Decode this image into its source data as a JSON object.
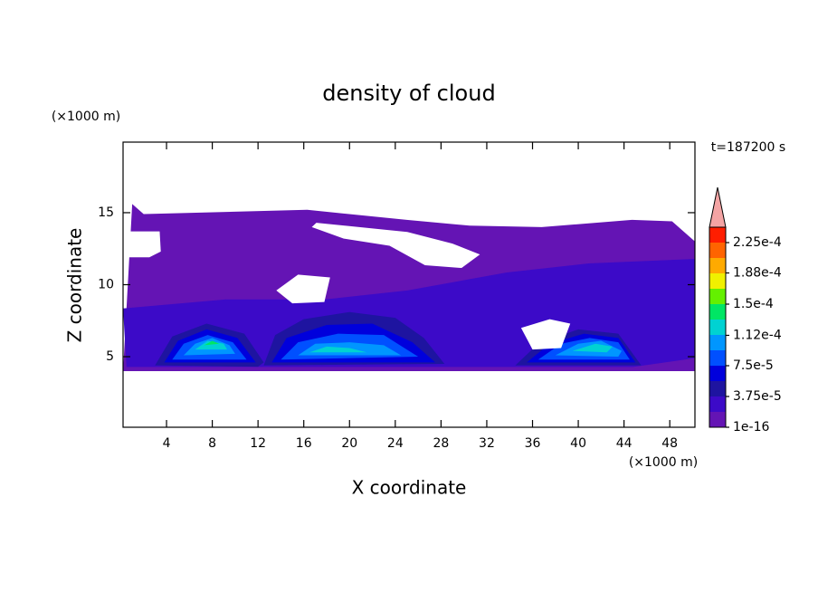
{
  "chart_data": {
    "type": "contour",
    "title": "density of cloud",
    "x_label": "X coordinate",
    "y_label": "Z coordinate",
    "x_unit": "(×1000 m)",
    "y_unit": "(×1000 m)",
    "annotation": "t=187200 s",
    "xlim": [
      0.2,
      50.2
    ],
    "ylim": [
      0.1,
      19.9
    ],
    "xticks": [
      4,
      8,
      12,
      16,
      20,
      24,
      28,
      32,
      36,
      40,
      44,
      48
    ],
    "yticks": [
      5,
      10,
      15
    ],
    "colorbar": {
      "levels": [
        1e-16,
        1.875e-05,
        3.75e-05,
        5.625e-05,
        7.5e-05,
        9.375e-05,
        0.0001125,
        0.00013125,
        0.00015,
        0.00016875,
        0.0001875,
        0.00020625,
        0.000225,
        0.00024375
      ],
      "colors": [
        "#6414b4",
        "#3c0ac8",
        "#1e14a0",
        "#0000dc",
        "#0050ff",
        "#0096ff",
        "#00d2d2",
        "#00e664",
        "#64f000",
        "#f0f000",
        "#ffaa00",
        "#ff6400",
        "#ff1e00"
      ],
      "extend_color": "#f4a4a4",
      "ticks": [
        1e-16,
        {
          "value": 3.75e-05,
          "label": "3.75e-5"
        },
        {
          "value": 7.5e-05,
          "label": "7.5e-5"
        },
        {
          "value": 0.000112,
          "label": "1.12e-4"
        },
        {
          "value": 0.00015,
          "label": "1.5e-4"
        },
        {
          "value": 0.000188,
          "label": "1.88e-4"
        },
        {
          "value": 0.000225,
          "label": "2.25e-4"
        }
      ]
    },
    "regions": [
      {
        "level": 0,
        "x": [
          0.2,
          1.0,
          2.0,
          16.3,
          25.0,
          30.5,
          36.8,
          44.7,
          48.2,
          50.2,
          50.2,
          0.2
        ],
        "y": [
          4.0,
          15.6,
          14.9,
          15.2,
          14.5,
          14.1,
          14.0,
          14.5,
          14.4,
          13.0,
          4.0,
          4.0
        ]
      },
      {
        "level": 1,
        "x": [
          0.2,
          9.2,
          17.9,
          25.05,
          33.75,
          40.9,
          50.2,
          50.2,
          44.8,
          0.5
        ],
        "y": [
          8.35,
          8.98,
          8.98,
          9.6,
          10.85,
          11.475,
          11.79,
          4.9,
          4.29,
          4.29
        ]
      },
      {
        "level": 2,
        "x": [
          3.0,
          4.5,
          7.5,
          10.8,
          12.5,
          12.0
        ],
        "y": [
          4.4,
          6.4,
          7.3,
          6.6,
          4.6,
          4.3
        ]
      },
      {
        "level": 3,
        "x": [
          3.8,
          5.0,
          7.5,
          10.2,
          11.8
        ],
        "y": [
          4.6,
          6.1,
          6.9,
          6.3,
          4.6
        ]
      },
      {
        "level": 4,
        "x": [
          4.5,
          5.5,
          7.6,
          9.8,
          11.0
        ],
        "y": [
          4.8,
          5.9,
          6.5,
          6.0,
          4.8
        ]
      },
      {
        "level": 5,
        "x": [
          5.5,
          6.5,
          8.0,
          9.5,
          10.0
        ],
        "y": [
          5.1,
          5.9,
          6.3,
          5.8,
          5.2
        ]
      },
      {
        "level": 6,
        "x": [
          6.5,
          7.6,
          9.0,
          9.3
        ],
        "y": [
          5.5,
          6.1,
          5.9,
          5.5
        ]
      },
      {
        "level": 7,
        "x": [
          7.3,
          8.0,
          8.6
        ],
        "y": [
          5.8,
          6.1,
          5.9
        ]
      },
      {
        "level": 2,
        "x": [
          12.5,
          13.5,
          16.0,
          20.0,
          24.0,
          26.5,
          28.3
        ],
        "y": [
          4.4,
          6.5,
          7.6,
          8.1,
          7.7,
          6.3,
          4.5
        ]
      },
      {
        "level": 3,
        "x": [
          13.2,
          14.5,
          18.0,
          22.0,
          25.5,
          27.5
        ],
        "y": [
          4.6,
          6.3,
          7.2,
          7.3,
          6.0,
          4.6
        ]
      },
      {
        "level": 4,
        "x": [
          14.0,
          15.5,
          19.0,
          23.0,
          26.0
        ],
        "y": [
          4.8,
          6.0,
          6.6,
          6.5,
          5.0
        ]
      },
      {
        "level": 5,
        "x": [
          15.5,
          17.0,
          20.0,
          23.0,
          24.5
        ],
        "y": [
          5.1,
          5.9,
          6.0,
          5.8,
          5.1
        ]
      },
      {
        "level": 6,
        "x": [
          16.5,
          18.0,
          20.0,
          21.5
        ],
        "y": [
          5.3,
          5.7,
          5.6,
          5.3
        ]
      },
      {
        "level": 2,
        "x": [
          34.5,
          36.5,
          40.0,
          43.5,
          45.5
        ],
        "y": [
          4.4,
          5.9,
          6.9,
          6.6,
          4.4
        ]
      },
      {
        "level": 3,
        "x": [
          35.5,
          37.5,
          40.5,
          43.5,
          45.0
        ],
        "y": [
          4.6,
          5.9,
          6.6,
          6.3,
          4.6
        ]
      },
      {
        "level": 4,
        "x": [
          36.5,
          38.5,
          41.0,
          43.5,
          44.5
        ],
        "y": [
          4.8,
          5.9,
          6.3,
          6.0,
          4.8
        ]
      },
      {
        "level": 5,
        "x": [
          38.0,
          40.0,
          42.0,
          43.8,
          43.5
        ],
        "y": [
          5.1,
          5.9,
          6.1,
          5.4,
          5.0
        ]
      },
      {
        "level": 6,
        "x": [
          39.5,
          41.5,
          43.0,
          42.5
        ],
        "y": [
          5.4,
          5.9,
          5.7,
          5.3
        ]
      }
    ],
    "gaps": [
      {
        "x": [
          0.2,
          3.4,
          3.5,
          2.5,
          0.2
        ],
        "y": [
          13.7,
          13.7,
          12.3,
          11.9,
          11.9
        ]
      },
      {
        "x": [
          17.1,
          25.05,
          29.0,
          31.4,
          29.8,
          26.6,
          23.5,
          19.5,
          16.7
        ],
        "y": [
          14.3,
          13.66,
          12.85,
          12.1,
          11.16,
          11.35,
          12.7,
          13.2,
          14.0
        ]
      },
      {
        "x": [
          13.6,
          15.5,
          18.3,
          17.8,
          15.0
        ],
        "y": [
          9.6,
          10.7,
          10.5,
          8.8,
          8.7
        ]
      },
      {
        "x": [
          35.0,
          37.5,
          39.3,
          38.5,
          36.0
        ],
        "y": [
          7.0,
          7.6,
          7.3,
          5.6,
          5.5
        ]
      }
    ]
  }
}
